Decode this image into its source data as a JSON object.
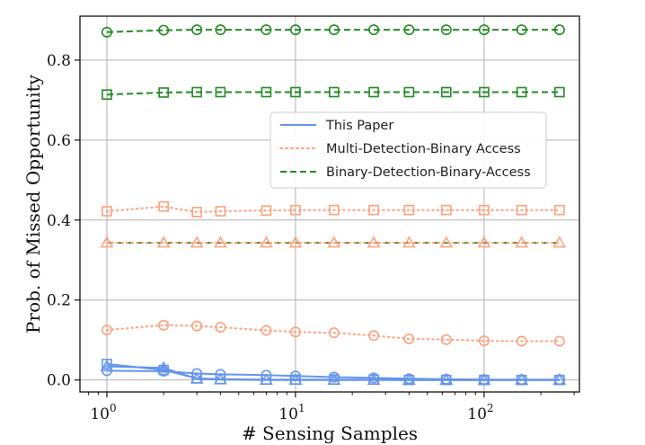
{
  "chart_data": {
    "type": "line",
    "title": "",
    "xlabel": "# Sensing Samples",
    "ylabel": "Prob. of Missed Opportunity",
    "xscale": "log",
    "xlim": [
      0.72,
      320
    ],
    "ylim": [
      -0.03,
      0.91
    ],
    "grid": true,
    "legend_position": "center-right",
    "x_ticks": [
      {
        "value": 1,
        "base": "10",
        "exp": "0"
      },
      {
        "value": 10,
        "base": "10",
        "exp": "1"
      },
      {
        "value": 100,
        "base": "10",
        "exp": "2"
      }
    ],
    "y_ticks": [
      {
        "value": 0.0,
        "label": "0.0"
      },
      {
        "value": 0.2,
        "label": "0.2"
      },
      {
        "value": 0.4,
        "label": "0.4"
      },
      {
        "value": 0.6,
        "label": "0.6"
      },
      {
        "value": 0.8,
        "label": "0.8"
      }
    ],
    "legend": [
      {
        "label": "This Paper",
        "style": "solid",
        "color": "#6495ED"
      },
      {
        "label": "Multi-Detection-Binary Access",
        "style": "dotted",
        "color": "#FFA07A"
      },
      {
        "label": "Binary-Detection-Binary-Access",
        "style": "dashed",
        "color": "#228B22"
      }
    ],
    "x": [
      1,
      2,
      3,
      4,
      7,
      10,
      16,
      26,
      40,
      63,
      100,
      158,
      251
    ],
    "series": [
      {
        "name": "Binary-Detection-Binary-Access (circle)",
        "group": "Binary-Detection-Binary-Access",
        "style": "dashed",
        "color": "#228B22",
        "marker": "circle",
        "values": [
          0.87,
          0.875,
          0.876,
          0.876,
          0.876,
          0.876,
          0.876,
          0.876,
          0.876,
          0.876,
          0.876,
          0.876,
          0.876
        ]
      },
      {
        "name": "Binary-Detection-Binary-Access (square)",
        "group": "Binary-Detection-Binary-Access",
        "style": "dashed",
        "color": "#228B22",
        "marker": "square",
        "values": [
          0.714,
          0.719,
          0.72,
          0.72,
          0.72,
          0.72,
          0.72,
          0.72,
          0.72,
          0.72,
          0.72,
          0.72,
          0.72
        ]
      },
      {
        "name": "Binary-Detection-Binary-Access (triangle)",
        "group": "Binary-Detection-Binary-Access",
        "style": "dashed",
        "color": "#228B22",
        "marker": "none",
        "values": [
          0.343,
          0.343,
          0.343,
          0.343,
          0.343,
          0.343,
          0.343,
          0.343,
          0.343,
          0.343,
          0.343,
          0.343,
          0.343
        ]
      },
      {
        "name": "Multi-Detection-Binary Access (square)",
        "group": "Multi-Detection-Binary Access",
        "style": "dotted",
        "color": "#FFA07A",
        "marker": "square",
        "values": [
          0.422,
          0.434,
          0.42,
          0.422,
          0.424,
          0.425,
          0.425,
          0.425,
          0.425,
          0.425,
          0.425,
          0.425,
          0.425
        ]
      },
      {
        "name": "Multi-Detection-Binary Access (triangle)",
        "group": "Multi-Detection-Binary Access",
        "style": "dotted",
        "color": "#FFA07A",
        "marker": "triangle",
        "values": [
          0.343,
          0.343,
          0.343,
          0.343,
          0.343,
          0.343,
          0.343,
          0.343,
          0.343,
          0.343,
          0.343,
          0.343,
          0.343
        ]
      },
      {
        "name": "Multi-Detection-Binary Access (circle)",
        "group": "Multi-Detection-Binary Access",
        "style": "dotted",
        "color": "#FFA07A",
        "marker": "circle",
        "values": [
          0.125,
          0.137,
          0.135,
          0.132,
          0.124,
          0.12,
          0.118,
          0.111,
          0.103,
          0.101,
          0.098,
          0.097,
          0.097
        ]
      },
      {
        "name": "This Paper (circle)",
        "group": "This Paper",
        "style": "solid",
        "color": "#6495ED",
        "marker": "circle",
        "values": [
          0.023,
          0.022,
          0.016,
          0.014,
          0.012,
          0.01,
          0.007,
          0.005,
          0.003,
          0.002,
          0.001,
          0.001,
          0.001
        ]
      },
      {
        "name": "This Paper (square)",
        "group": "This Paper",
        "style": "solid",
        "color": "#6495ED",
        "marker": "square",
        "values": [
          0.04,
          0.025,
          0.004,
          0.002,
          0.001,
          0.001,
          0.001,
          0.001,
          0.0,
          0.0,
          0.0,
          0.0,
          0.0
        ]
      },
      {
        "name": "This Paper (triangle)",
        "group": "This Paper",
        "style": "solid",
        "color": "#6495ED",
        "marker": "triangle",
        "values": [
          0.034,
          0.03,
          0.003,
          0.001,
          0.0,
          0.0,
          0.0,
          0.0,
          0.0,
          0.0,
          0.0,
          0.0,
          0.0
        ]
      }
    ]
  }
}
